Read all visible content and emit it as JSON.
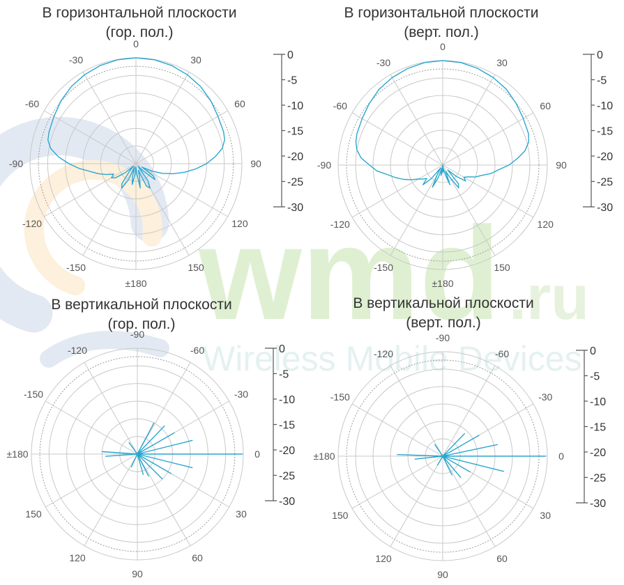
{
  "watermark": {
    "brand": "wmd",
    "domain": ".ru",
    "tagline": "Wireless Mobile Devices"
  },
  "colors": {
    "trace": "#2aa6cf",
    "grid": "#c8c8c8",
    "ring_dotted": "#9a9a9a",
    "text": "#333333"
  },
  "chart_data": [
    {
      "type": "polar",
      "title": "В горизонтальной плоскости",
      "subtitle": "(гор. пол.)",
      "angle_unit": "deg",
      "angle_labels": [
        {
          "deg": 0,
          "text": "0"
        },
        {
          "deg": 30,
          "text": "30"
        },
        {
          "deg": 60,
          "text": "60"
        },
        {
          "deg": 90,
          "text": "90"
        },
        {
          "deg": 120,
          "text": "120"
        },
        {
          "deg": 150,
          "text": "150"
        },
        {
          "deg": 180,
          "text": "±180"
        },
        {
          "deg": 210,
          "text": "-150"
        },
        {
          "deg": 240,
          "text": "-120"
        },
        {
          "deg": 270,
          "text": "-90"
        },
        {
          "deg": 300,
          "text": "-60"
        },
        {
          "deg": 330,
          "text": "-30"
        }
      ],
      "r_range": [
        -30,
        0
      ],
      "r_unit": "dB",
      "r_ticks": [
        0,
        -5,
        -10,
        -15,
        -20,
        -25,
        -30
      ],
      "series": [
        {
          "points": [
            [
              0,
              0
            ],
            [
              10,
              -0.1
            ],
            [
              20,
              -0.4
            ],
            [
              30,
              -0.9
            ],
            [
              40,
              -1.5
            ],
            [
              50,
              -2.3
            ],
            [
              60,
              -3.2
            ],
            [
              70,
              -3.6
            ],
            [
              75,
              -4.0
            ],
            [
              80,
              -5.2
            ],
            [
              85,
              -7.5
            ],
            [
              90,
              -10
            ],
            [
              95,
              -13
            ],
            [
              100,
              -16
            ],
            [
              105,
              -19
            ],
            [
              110,
              -22
            ],
            [
              115,
              -25
            ],
            [
              120,
              -28
            ],
            [
              125,
              -24
            ],
            [
              130,
              -23
            ],
            [
              135,
              -27
            ],
            [
              140,
              -29
            ],
            [
              145,
              -24
            ],
            [
              150,
              -22
            ],
            [
              155,
              -23
            ],
            [
              160,
              -28
            ],
            [
              165,
              -26
            ],
            [
              170,
              -23
            ],
            [
              175,
              -27
            ],
            [
              180,
              -29
            ],
            [
              185,
              -27
            ],
            [
              190,
              -24
            ],
            [
              195,
              -26
            ],
            [
              200,
              -29
            ],
            [
              205,
              -25
            ],
            [
              210,
              -22
            ],
            [
              215,
              -23
            ],
            [
              220,
              -27
            ],
            [
              225,
              -29
            ],
            [
              230,
              -26
            ],
            [
              235,
              -23
            ],
            [
              240,
              -22
            ],
            [
              245,
              -23
            ],
            [
              250,
              -21
            ],
            [
              255,
              -19
            ],
            [
              260,
              -17
            ],
            [
              265,
              -14
            ],
            [
              270,
              -11
            ],
            [
              275,
              -8
            ],
            [
              280,
              -5.5
            ],
            [
              285,
              -4.2
            ],
            [
              290,
              -3.8
            ],
            [
              300,
              -3.2
            ],
            [
              310,
              -2.3
            ],
            [
              320,
              -1.5
            ],
            [
              330,
              -0.9
            ],
            [
              340,
              -0.4
            ],
            [
              350,
              -0.1
            ],
            [
              360,
              0
            ]
          ]
        }
      ]
    },
    {
      "type": "polar",
      "title": "В горизонтальной плоскости",
      "subtitle": "(верт. пол.)",
      "angle_unit": "deg",
      "angle_labels": [
        {
          "deg": 0,
          "text": "0"
        },
        {
          "deg": 30,
          "text": "30"
        },
        {
          "deg": 60,
          "text": "60"
        },
        {
          "deg": 90,
          "text": "90"
        },
        {
          "deg": 120,
          "text": "120"
        },
        {
          "deg": 150,
          "text": "150"
        },
        {
          "deg": 180,
          "text": "±180"
        },
        {
          "deg": 210,
          "text": "-150"
        },
        {
          "deg": 240,
          "text": "-120"
        },
        {
          "deg": 270,
          "text": "-90"
        },
        {
          "deg": 300,
          "text": "-60"
        },
        {
          "deg": 330,
          "text": "-30"
        }
      ],
      "r_range": [
        -30,
        0
      ],
      "r_unit": "dB",
      "r_ticks": [
        0,
        -5,
        -10,
        -15,
        -20,
        -25,
        -30
      ],
      "series": [
        {
          "points": [
            [
              0,
              0
            ],
            [
              10,
              -0.1
            ],
            [
              20,
              -0.5
            ],
            [
              30,
              -1.0
            ],
            [
              40,
              -1.6
            ],
            [
              50,
              -2.5
            ],
            [
              60,
              -3.3
            ],
            [
              70,
              -3.8
            ],
            [
              75,
              -4.5
            ],
            [
              80,
              -6
            ],
            [
              85,
              -8.5
            ],
            [
              90,
              -11
            ],
            [
              95,
              -14
            ],
            [
              100,
              -16
            ],
            [
              105,
              -18.5
            ],
            [
              110,
              -20
            ],
            [
              115,
              -22
            ],
            [
              120,
              -23
            ],
            [
              125,
              -22
            ],
            [
              130,
              -25
            ],
            [
              135,
              -28
            ],
            [
              140,
              -23
            ],
            [
              145,
              -22
            ],
            [
              150,
              -26
            ],
            [
              155,
              -28
            ],
            [
              160,
              -24
            ],
            [
              165,
              -27
            ],
            [
              170,
              -29
            ],
            [
              175,
              -28
            ],
            [
              180,
              -30
            ],
            [
              185,
              -28
            ],
            [
              190,
              -27
            ],
            [
              195,
              -29
            ],
            [
              200,
              -26
            ],
            [
              205,
              -23
            ],
            [
              210,
              -27
            ],
            [
              215,
              -29
            ],
            [
              220,
              -25
            ],
            [
              225,
              -22
            ],
            [
              230,
              -24
            ],
            [
              235,
              -23
            ],
            [
              240,
              -22
            ],
            [
              245,
              -20
            ],
            [
              250,
              -18
            ],
            [
              255,
              -16
            ],
            [
              260,
              -14
            ],
            [
              265,
              -11
            ],
            [
              270,
              -9
            ],
            [
              275,
              -6.5
            ],
            [
              280,
              -5
            ],
            [
              285,
              -4.2
            ],
            [
              290,
              -3.8
            ],
            [
              300,
              -3.3
            ],
            [
              310,
              -2.5
            ],
            [
              320,
              -1.6
            ],
            [
              330,
              -1.0
            ],
            [
              340,
              -0.5
            ],
            [
              350,
              -0.1
            ],
            [
              360,
              0
            ]
          ]
        }
      ]
    },
    {
      "type": "polar",
      "title": "В вертикальной плоскости",
      "subtitle": "(гор. пол.)",
      "angle_unit": "deg",
      "angle_labels": [
        {
          "deg": 0,
          "text": "-90"
        },
        {
          "deg": 30,
          "text": "-60"
        },
        {
          "deg": 60,
          "text": "-30"
        },
        {
          "deg": 90,
          "text": "0"
        },
        {
          "deg": 120,
          "text": "30"
        },
        {
          "deg": 150,
          "text": "60"
        },
        {
          "deg": 180,
          "text": "90"
        },
        {
          "deg": 210,
          "text": "120"
        },
        {
          "deg": 240,
          "text": "150"
        },
        {
          "deg": 270,
          "text": "±180"
        },
        {
          "deg": 300,
          "text": "-150"
        },
        {
          "deg": 330,
          "text": "-120"
        }
      ],
      "r_range": [
        -30,
        0
      ],
      "r_unit": "dB",
      "r_ticks": [
        0,
        -5,
        -10,
        -15,
        -20,
        -25,
        -30
      ],
      "series": [
        {
          "points": [
            [
              85,
              -30
            ],
            [
              90,
              -0.3
            ],
            [
              95,
              -30
            ],
            [
              70,
              -30
            ],
            [
              76,
              -14
            ],
            [
              80,
              -30
            ],
            [
              100,
              -30
            ],
            [
              104,
              -14
            ],
            [
              108,
              -30
            ],
            [
              55,
              -30
            ],
            [
              60,
              -18
            ],
            [
              65,
              -30
            ],
            [
              115,
              -30
            ],
            [
              120,
              -19
            ],
            [
              125,
              -30
            ],
            [
              40,
              -30
            ],
            [
              44,
              -19
            ],
            [
              48,
              -30
            ],
            [
              130,
              -30
            ],
            [
              135,
              -20
            ],
            [
              140,
              -30
            ],
            [
              25,
              -30
            ],
            [
              28,
              -20
            ],
            [
              31,
              -30
            ],
            [
              150,
              -30
            ],
            [
              153,
              -23
            ],
            [
              156,
              -30
            ],
            [
              160,
              -30
            ],
            [
              164,
              -24
            ],
            [
              168,
              -30
            ],
            [
              270,
              -30
            ],
            [
              274,
              -20
            ],
            [
              278,
              -30
            ],
            [
              262,
              -30
            ],
            [
              266,
              -21
            ],
            [
              269,
              -30
            ],
            [
              200,
              -30
            ],
            [
              205,
              -26
            ],
            [
              210,
              -30
            ],
            [
              320,
              -30
            ],
            [
              324,
              -26
            ],
            [
              328,
              -30
            ],
            [
              85,
              -30
            ]
          ]
        }
      ]
    },
    {
      "type": "polar",
      "title": "В вертикальной плоскости",
      "subtitle": "(верт. пол.)",
      "angle_unit": "deg",
      "angle_labels": [
        {
          "deg": 0,
          "text": "-90"
        },
        {
          "deg": 30,
          "text": "-60"
        },
        {
          "deg": 60,
          "text": "-30"
        },
        {
          "deg": 90,
          "text": "0"
        },
        {
          "deg": 120,
          "text": "30"
        },
        {
          "deg": 150,
          "text": "60"
        },
        {
          "deg": 180,
          "text": "90"
        },
        {
          "deg": 210,
          "text": "120"
        },
        {
          "deg": 240,
          "text": "150"
        },
        {
          "deg": 270,
          "text": "±180"
        },
        {
          "deg": 300,
          "text": "-150"
        },
        {
          "deg": 330,
          "text": "-120"
        }
      ],
      "r_range": [
        -30,
        0
      ],
      "r_unit": "dB",
      "r_ticks": [
        0,
        -5,
        -10,
        -15,
        -20,
        -25,
        -30
      ],
      "series": [
        {
          "points": [
            [
              86,
              -30
            ],
            [
              90,
              -0.5
            ],
            [
              94,
              -30
            ],
            [
              72,
              -30
            ],
            [
              78,
              -14
            ],
            [
              82,
              -30
            ],
            [
              98,
              -30
            ],
            [
              104,
              -12
            ],
            [
              108,
              -30
            ],
            [
              55,
              -30
            ],
            [
              60,
              -18
            ],
            [
              65,
              -30
            ],
            [
              115,
              -30
            ],
            [
              120,
              -21
            ],
            [
              125,
              -30
            ],
            [
              40,
              -30
            ],
            [
              44,
              -21
            ],
            [
              48,
              -30
            ],
            [
              135,
              -30
            ],
            [
              140,
              -22
            ],
            [
              145,
              -30
            ],
            [
              150,
              -30
            ],
            [
              154,
              -24
            ],
            [
              158,
              -30
            ],
            [
              268,
              -30
            ],
            [
              272,
              -17
            ],
            [
              276,
              -30
            ],
            [
              260,
              -30
            ],
            [
              264,
              -22
            ],
            [
              267,
              -30
            ],
            [
              205,
              -30
            ],
            [
              210,
              -27
            ],
            [
              215,
              -30
            ],
            [
              320,
              -30
            ],
            [
              326,
              -26
            ],
            [
              330,
              -30
            ],
            [
              86,
              -30
            ]
          ]
        }
      ]
    }
  ]
}
